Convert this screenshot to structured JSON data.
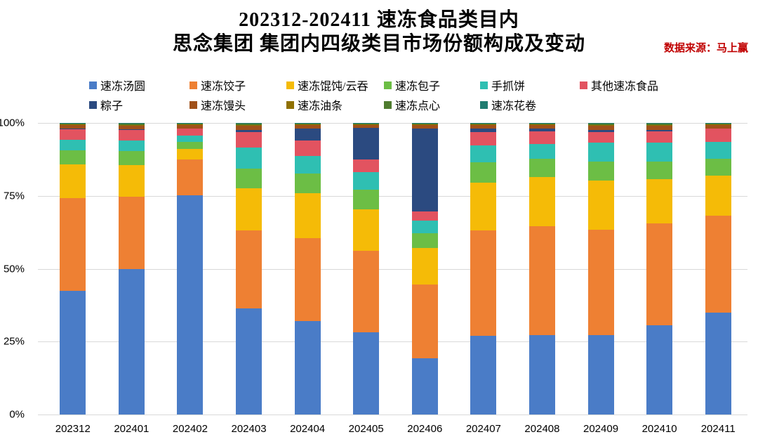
{
  "header": {
    "title_line1": "202312-202411 速冻食品类目内",
    "title_line2": "思念集团 集团内四级类目市场份额构成及变动",
    "source": "数据来源：马上赢",
    "source_color": "#C00000"
  },
  "legend": {
    "row1": [
      "速冻汤圆",
      "速冻饺子",
      "速冻馄饨/云吞",
      "速冻包子",
      "手抓饼",
      "其他速冻食品"
    ],
    "row2": [
      "粽子",
      "速冻馒头",
      "速冻油条",
      "速冻点心",
      "速冻花卷"
    ]
  },
  "chart_data": {
    "type": "bar",
    "stacked": true,
    "title": "202312-202411 速冻食品类目内 思念集团 集团内四级类目市场份额构成及变动",
    "xlabel": "",
    "ylabel": "",
    "ylim": [
      0,
      100
    ],
    "grid": true,
    "legend_position": "top",
    "yticks": [
      {
        "value": 0,
        "label": "0%"
      },
      {
        "value": 25,
        "label": "25%"
      },
      {
        "value": 50,
        "label": "50%"
      },
      {
        "value": 75,
        "label": "75%"
      },
      {
        "value": 100,
        "label": "100%"
      }
    ],
    "categories": [
      "202312",
      "202401",
      "202402",
      "202403",
      "202404",
      "202405",
      "202406",
      "202407",
      "202408",
      "202409",
      "202410",
      "202411"
    ],
    "series": [
      {
        "name": "速冻汤圆",
        "color": "#4A7CC7",
        "values": [
          42.5,
          49.8,
          75.1,
          36.5,
          32.1,
          28.1,
          19.3,
          26.9,
          27.3,
          27.3,
          30.5,
          34.9
        ]
      },
      {
        "name": "速冻饺子",
        "color": "#EE8033",
        "values": [
          31.8,
          24.9,
          12.4,
          26.6,
          28.5,
          28.1,
          25.4,
          36.2,
          37.4,
          36.1,
          35.0,
          33.4
        ]
      },
      {
        "name": "速冻馄饨/云吞",
        "color": "#F5BB07",
        "values": [
          11.6,
          10.8,
          3.7,
          14.4,
          15.3,
          14.1,
          12.5,
          16.4,
          16.8,
          16.9,
          15.2,
          13.6
        ]
      },
      {
        "name": "速冻包子",
        "color": "#6CBE45",
        "values": [
          4.8,
          4.8,
          2.4,
          6.8,
          6.8,
          6.8,
          4.9,
          6.9,
          6.1,
          6.4,
          6.0,
          5.7
        ]
      },
      {
        "name": "手抓饼",
        "color": "#2FBFB2",
        "values": [
          3.6,
          3.7,
          2.0,
          7.3,
          6.1,
          6.0,
          4.4,
          6.0,
          5.2,
          6.5,
          6.5,
          6.0
        ]
      },
      {
        "name": "其他速冻食品",
        "color": "#E25360",
        "values": [
          3.6,
          3.6,
          2.4,
          5.2,
          5.2,
          4.5,
          3.2,
          4.4,
          4.4,
          3.8,
          4.0,
          4.4
        ]
      },
      {
        "name": "粽子",
        "color": "#2B4A80",
        "values": [
          0.3,
          0.3,
          0.2,
          0.8,
          4.0,
          10.8,
          28.5,
          1.2,
          0.8,
          0.5,
          0.3,
          0.2
        ]
      },
      {
        "name": "速冻馒头",
        "color": "#A0511A",
        "values": [
          1.0,
          1.2,
          1.0,
          1.4,
          1.2,
          1.0,
          1.2,
          1.2,
          1.2,
          1.5,
          1.5,
          1.0
        ]
      },
      {
        "name": "速冻油条",
        "color": "#8F7000",
        "values": [
          0.3,
          0.3,
          0.3,
          0.3,
          0.3,
          0.2,
          0.2,
          0.3,
          0.3,
          0.3,
          0.3,
          0.3
        ]
      },
      {
        "name": "速冻点心",
        "color": "#4E7B2E",
        "values": [
          0.3,
          0.3,
          0.3,
          0.4,
          0.3,
          0.2,
          0.2,
          0.3,
          0.3,
          0.4,
          0.4,
          0.3
        ]
      },
      {
        "name": "速冻花卷",
        "color": "#1F7C70",
        "values": [
          0.2,
          0.3,
          0.2,
          0.3,
          0.2,
          0.2,
          0.2,
          0.2,
          0.2,
          0.3,
          0.3,
          0.2
        ]
      }
    ]
  }
}
